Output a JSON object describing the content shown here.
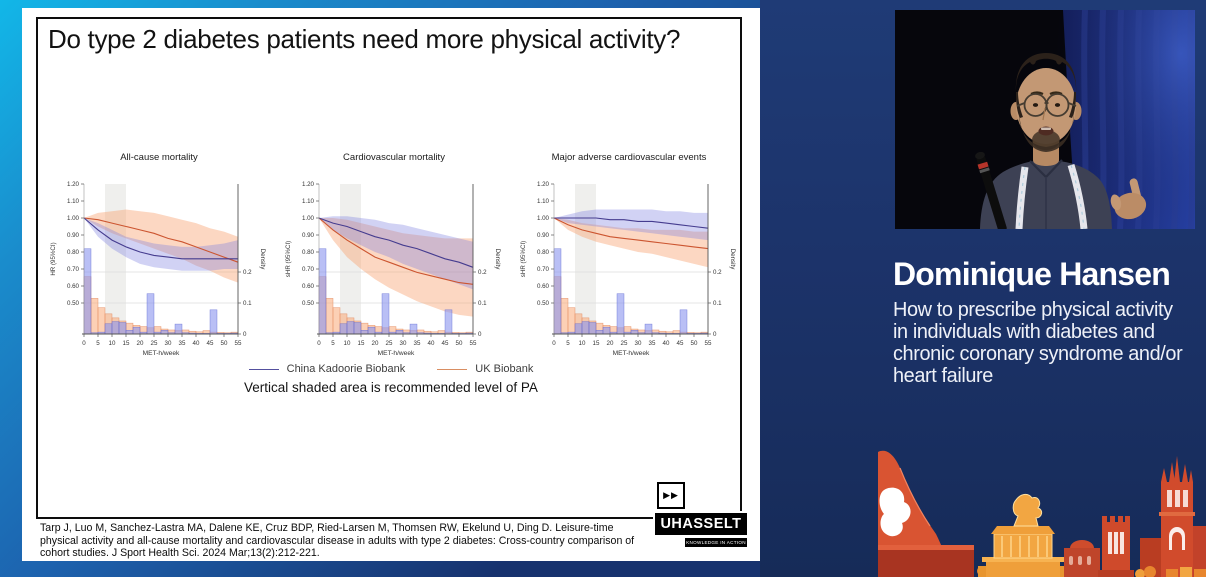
{
  "slide": {
    "title": "Do type 2 diabetes patients need more physical activity?",
    "caption": "Vertical shaded area is recommended level of PA",
    "citation": "Tarp J, Luo M, Sanchez-Lastra MA, Dalene KE, Cruz BDP, Ried-Larsen M, Thomsen RW, Ekelund U, Ding D. Leisure-time physical activity and all-cause mortality and cardiovascular disease in adults with type 2 diabetes: Cross-country comparison of cohort studies. J Sport Health Sci. 2024 Mar;13(2):212-221.",
    "logo": {
      "arrows": "▶▶",
      "brand": "UHASSELT",
      "tagline": "KNOWLEDGE IN ACTION"
    }
  },
  "speaker": {
    "name": "Dominique Hansen",
    "talk_title_lines": [
      "How to prescribe physical activity",
      "in individuals with diabetes and",
      "chronic coronary syndrome and/or",
      "heart failure"
    ]
  },
  "theme": {
    "accent_cyan": "#14b6e8",
    "background_navy": "#1d346a",
    "slide_bg": "#ffffff",
    "skyline_red": "#d14b2c",
    "skyline_orange": "#f2a642"
  },
  "chart_data": {
    "type": "line",
    "xlabel": "MET-h/week",
    "x": [
      0,
      5,
      10,
      15,
      20,
      25,
      30,
      35,
      40,
      45,
      50,
      55
    ],
    "x_ticks": [
      0,
      5,
      10,
      15,
      20,
      25,
      30,
      35,
      40,
      45,
      50,
      55
    ],
    "hr_ticks": [
      "1.20",
      "1.10",
      "1.00",
      "0.90",
      "0.80",
      "0.70",
      "0.60",
      "0.50"
    ],
    "density_ticks": [
      "0.2",
      "0.1",
      "0"
    ],
    "density_axis_label": "Density",
    "recommended_band_met_h_week": [
      7.5,
      15
    ],
    "legend": [
      {
        "label": "China Kadoorie Biobank",
        "color": "#54509e",
        "line": "#453c8f",
        "band": "rgba(122,126,224,0.35)",
        "hist_fill": "rgba(138,148,238,0.60)",
        "hist_stroke": "rgba(90,100,210,0.75)"
      },
      {
        "label": "UK Biobank",
        "color": "#d98e62",
        "line": "#cc5530",
        "band": "rgba(248,160,110,0.42)",
        "hist_fill": "rgba(250,170,120,0.55)",
        "hist_stroke": "rgba(225,130,85,0.80)"
      }
    ],
    "density_hist": {
      "bin_width": 2.5,
      "china": [
        0.275,
        0.004,
        0.006,
        0.033,
        0.04,
        0.037,
        0.012,
        0.022,
        0.006,
        0.13,
        0.006,
        0.012,
        0.004,
        0.032,
        0.004,
        0.003,
        0.002,
        0.002,
        0.078,
        0.002,
        0.002,
        0.003
      ],
      "uk": [
        0.185,
        0.115,
        0.085,
        0.065,
        0.052,
        0.042,
        0.035,
        0.028,
        0.024,
        0.02,
        0.024,
        0.016,
        0.013,
        0.011,
        0.013,
        0.009,
        0.007,
        0.011,
        0.006,
        0.005,
        0.004,
        0.006
      ]
    },
    "charts": [
      {
        "title": "All-cause mortality",
        "ylabel": "HR (95%CI)",
        "china": {
          "y": [
            1.0,
            0.93,
            0.87,
            0.83,
            0.8,
            0.78,
            0.77,
            0.76,
            0.76,
            0.76,
            0.76,
            0.76
          ],
          "lo": [
            1.0,
            0.89,
            0.82,
            0.77,
            0.73,
            0.71,
            0.7,
            0.69,
            0.69,
            0.69,
            0.7,
            0.7
          ],
          "hi": [
            1.0,
            0.97,
            0.93,
            0.89,
            0.87,
            0.85,
            0.84,
            0.83,
            0.83,
            0.84,
            0.85,
            0.87
          ]
        },
        "uk": {
          "y": [
            1.0,
            0.99,
            0.97,
            0.95,
            0.93,
            0.91,
            0.88,
            0.86,
            0.83,
            0.8,
            0.77,
            0.74
          ],
          "lo": [
            1.0,
            0.95,
            0.91,
            0.88,
            0.85,
            0.82,
            0.79,
            0.76,
            0.72,
            0.69,
            0.65,
            0.62
          ],
          "hi": [
            1.0,
            1.03,
            1.04,
            1.05,
            1.04,
            1.03,
            1.01,
            0.99,
            0.97,
            0.94,
            0.92,
            0.89
          ]
        }
      },
      {
        "title": "Cardiovascular mortality",
        "ylabel": "sHR (95%CI)",
        "china": {
          "y": [
            1.0,
            0.97,
            0.95,
            0.92,
            0.89,
            0.87,
            0.84,
            0.82,
            0.79,
            0.76,
            0.74,
            0.71
          ],
          "lo": [
            1.0,
            0.93,
            0.88,
            0.84,
            0.8,
            0.77,
            0.73,
            0.7,
            0.67,
            0.64,
            0.61,
            0.58
          ],
          "hi": [
            1.0,
            1.01,
            1.01,
            1.0,
            0.99,
            0.97,
            0.96,
            0.94,
            0.92,
            0.9,
            0.88,
            0.86
          ]
        },
        "uk": {
          "y": [
            1.0,
            0.93,
            0.87,
            0.82,
            0.77,
            0.74,
            0.71,
            0.68,
            0.66,
            0.64,
            0.62,
            0.61
          ],
          "lo": [
            1.0,
            0.87,
            0.77,
            0.7,
            0.64,
            0.59,
            0.55,
            0.51,
            0.48,
            0.45,
            0.43,
            0.42
          ],
          "hi": [
            1.0,
            1.0,
            0.99,
            0.97,
            0.95,
            0.93,
            0.91,
            0.9,
            0.89,
            0.88,
            0.88,
            0.88
          ]
        }
      },
      {
        "title": "Major adverse cardiovascular events",
        "ylabel": "sHR (95%CI)",
        "china": {
          "y": [
            1.0,
            1.0,
            1.0,
            1.0,
            0.99,
            0.99,
            0.98,
            0.98,
            0.97,
            0.96,
            0.95,
            0.94
          ],
          "lo": [
            1.0,
            0.97,
            0.96,
            0.95,
            0.94,
            0.93,
            0.92,
            0.91,
            0.9,
            0.89,
            0.88,
            0.87
          ],
          "hi": [
            1.0,
            1.02,
            1.04,
            1.05,
            1.05,
            1.05,
            1.05,
            1.05,
            1.04,
            1.04,
            1.03,
            1.03
          ]
        },
        "uk": {
          "y": [
            1.0,
            0.96,
            0.93,
            0.91,
            0.89,
            0.88,
            0.87,
            0.86,
            0.85,
            0.84,
            0.83,
            0.82
          ],
          "lo": [
            1.0,
            0.93,
            0.89,
            0.86,
            0.84,
            0.82,
            0.8,
            0.79,
            0.77,
            0.75,
            0.73,
            0.71
          ],
          "hi": [
            1.0,
            0.99,
            0.97,
            0.96,
            0.95,
            0.94,
            0.94,
            0.93,
            0.93,
            0.93,
            0.92,
            0.92
          ]
        }
      }
    ]
  }
}
